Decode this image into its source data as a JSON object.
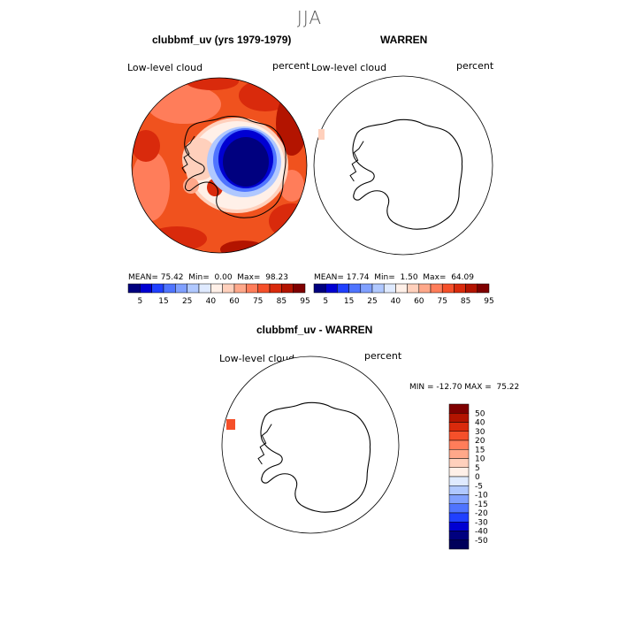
{
  "figure": {
    "season": "JJA"
  },
  "panels": [
    {
      "title": "clubbmf_uv (yrs 1979-1979)",
      "subtitle_left": "Low-level cloud",
      "subtitle_right": "percent",
      "stats": {
        "mean": "75.42",
        "min": "0.00",
        "max": "98.23"
      },
      "stats_labels": {
        "mean": "MEAN=",
        "min": "Min=",
        "max": "Max="
      }
    },
    {
      "title": "WARREN",
      "subtitle_left": "Low-level cloud",
      "subtitle_right": "percent",
      "stats": {
        "mean": "17.74",
        "min": "1.50",
        "max": "64.09"
      },
      "stats_labels": {
        "mean": "MEAN=",
        "min": "Min=",
        "max": "Max="
      }
    },
    {
      "title": "clubbmf_uv - WARREN",
      "subtitle_left": "Low-level cloud",
      "subtitle_right": "percent",
      "minmax_text": "MIN = -12.70 MAX =  75.22"
    }
  ],
  "chart_data": [
    {
      "type": "heatmap",
      "title": "clubbmf_uv (yrs 1979-1979)",
      "projection": "south polar stereographic",
      "field": "Low-level cloud",
      "units": "percent",
      "summary": {
        "mean": 75.42,
        "min": 0.0,
        "max": 98.23
      },
      "colorbar": {
        "tick_labels": [
          "5",
          "15",
          "25",
          "40",
          "60",
          "75",
          "85",
          "95"
        ],
        "colors": [
          "#00007f",
          "#0000d2",
          "#2040ff",
          "#4f74ff",
          "#80a0ff",
          "#b0c8ff",
          "#dfeaff",
          "#fff0e8",
          "#ffd0bc",
          "#ffa88a",
          "#ff7d5a",
          "#f5502a",
          "#d92a0c",
          "#b31400",
          "#7f0000"
        ]
      }
    },
    {
      "type": "heatmap",
      "title": "WARREN",
      "projection": "south polar stereographic",
      "field": "Low-level cloud",
      "units": "percent",
      "summary": {
        "mean": 17.74,
        "min": 1.5,
        "max": 64.09
      },
      "colorbar": {
        "tick_labels": [
          "5",
          "15",
          "25",
          "40",
          "60",
          "75",
          "85",
          "95"
        ],
        "colors": [
          "#00007f",
          "#0000d2",
          "#2040ff",
          "#4f74ff",
          "#80a0ff",
          "#b0c8ff",
          "#dfeaff",
          "#fff0e8",
          "#ffd0bc",
          "#ffa88a",
          "#ff7d5a",
          "#f5502a",
          "#d92a0c",
          "#b31400",
          "#7f0000"
        ]
      }
    },
    {
      "type": "heatmap",
      "title": "clubbmf_uv - WARREN",
      "projection": "south polar stereographic",
      "field": "Low-level cloud",
      "units": "percent",
      "summary": {
        "min": -12.7,
        "max": 75.22
      },
      "colorbar": {
        "tick_labels": [
          "50",
          "40",
          "30",
          "20",
          "15",
          "10",
          "5",
          "0",
          "-5",
          "-10",
          "-15",
          "-20",
          "-30",
          "-40",
          "-50"
        ],
        "colors": [
          "#7f0000",
          "#b31400",
          "#d92a0c",
          "#f5502a",
          "#ff7d5a",
          "#ffa88a",
          "#ffd0bc",
          "#fff0e8",
          "#dfeaff",
          "#b0c8ff",
          "#80a0ff",
          "#4f74ff",
          "#2040ff",
          "#0000d2",
          "#00007f",
          "#00005a"
        ]
      }
    }
  ]
}
